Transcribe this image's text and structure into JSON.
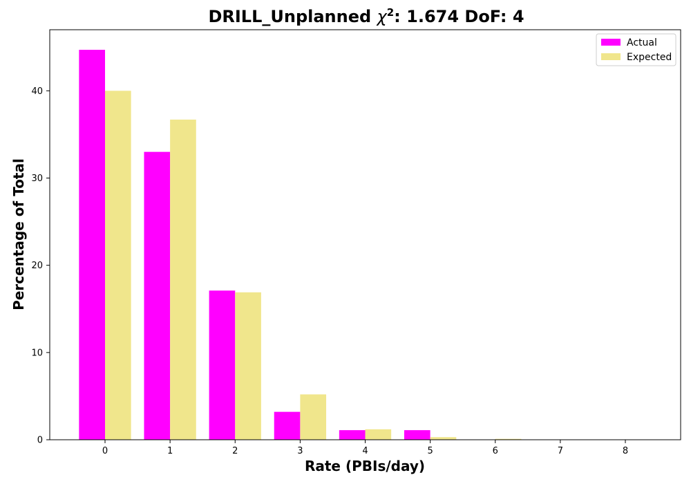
{
  "chart_data": {
    "type": "bar",
    "title_prefix": "DRILL_Unplanned ",
    "title_chi": "χ",
    "title_sup": "2",
    "title_suffix": ": 1.674 DoF: 4",
    "xlabel": "Rate (PBIs/day)",
    "ylabel": "Percentage of Total",
    "categories": [
      "0",
      "1",
      "2",
      "3",
      "4",
      "5",
      "6",
      "7",
      "8"
    ],
    "series": [
      {
        "name": "Actual",
        "color": "#ff00ff",
        "values": [
          44.7,
          33.0,
          17.1,
          3.2,
          1.1,
          1.1,
          0,
          0,
          0
        ]
      },
      {
        "name": "Expected",
        "color": "#f0e68c",
        "values": [
          40.0,
          36.7,
          16.9,
          5.2,
          1.2,
          0.3,
          0.1,
          0.0,
          0.0
        ]
      }
    ],
    "yticks": [
      0,
      10,
      20,
      30,
      40
    ],
    "ylim": [
      0,
      47
    ],
    "xlim": [
      -0.85,
      8.85
    ],
    "legend_position": "top-right",
    "grid": false
  }
}
